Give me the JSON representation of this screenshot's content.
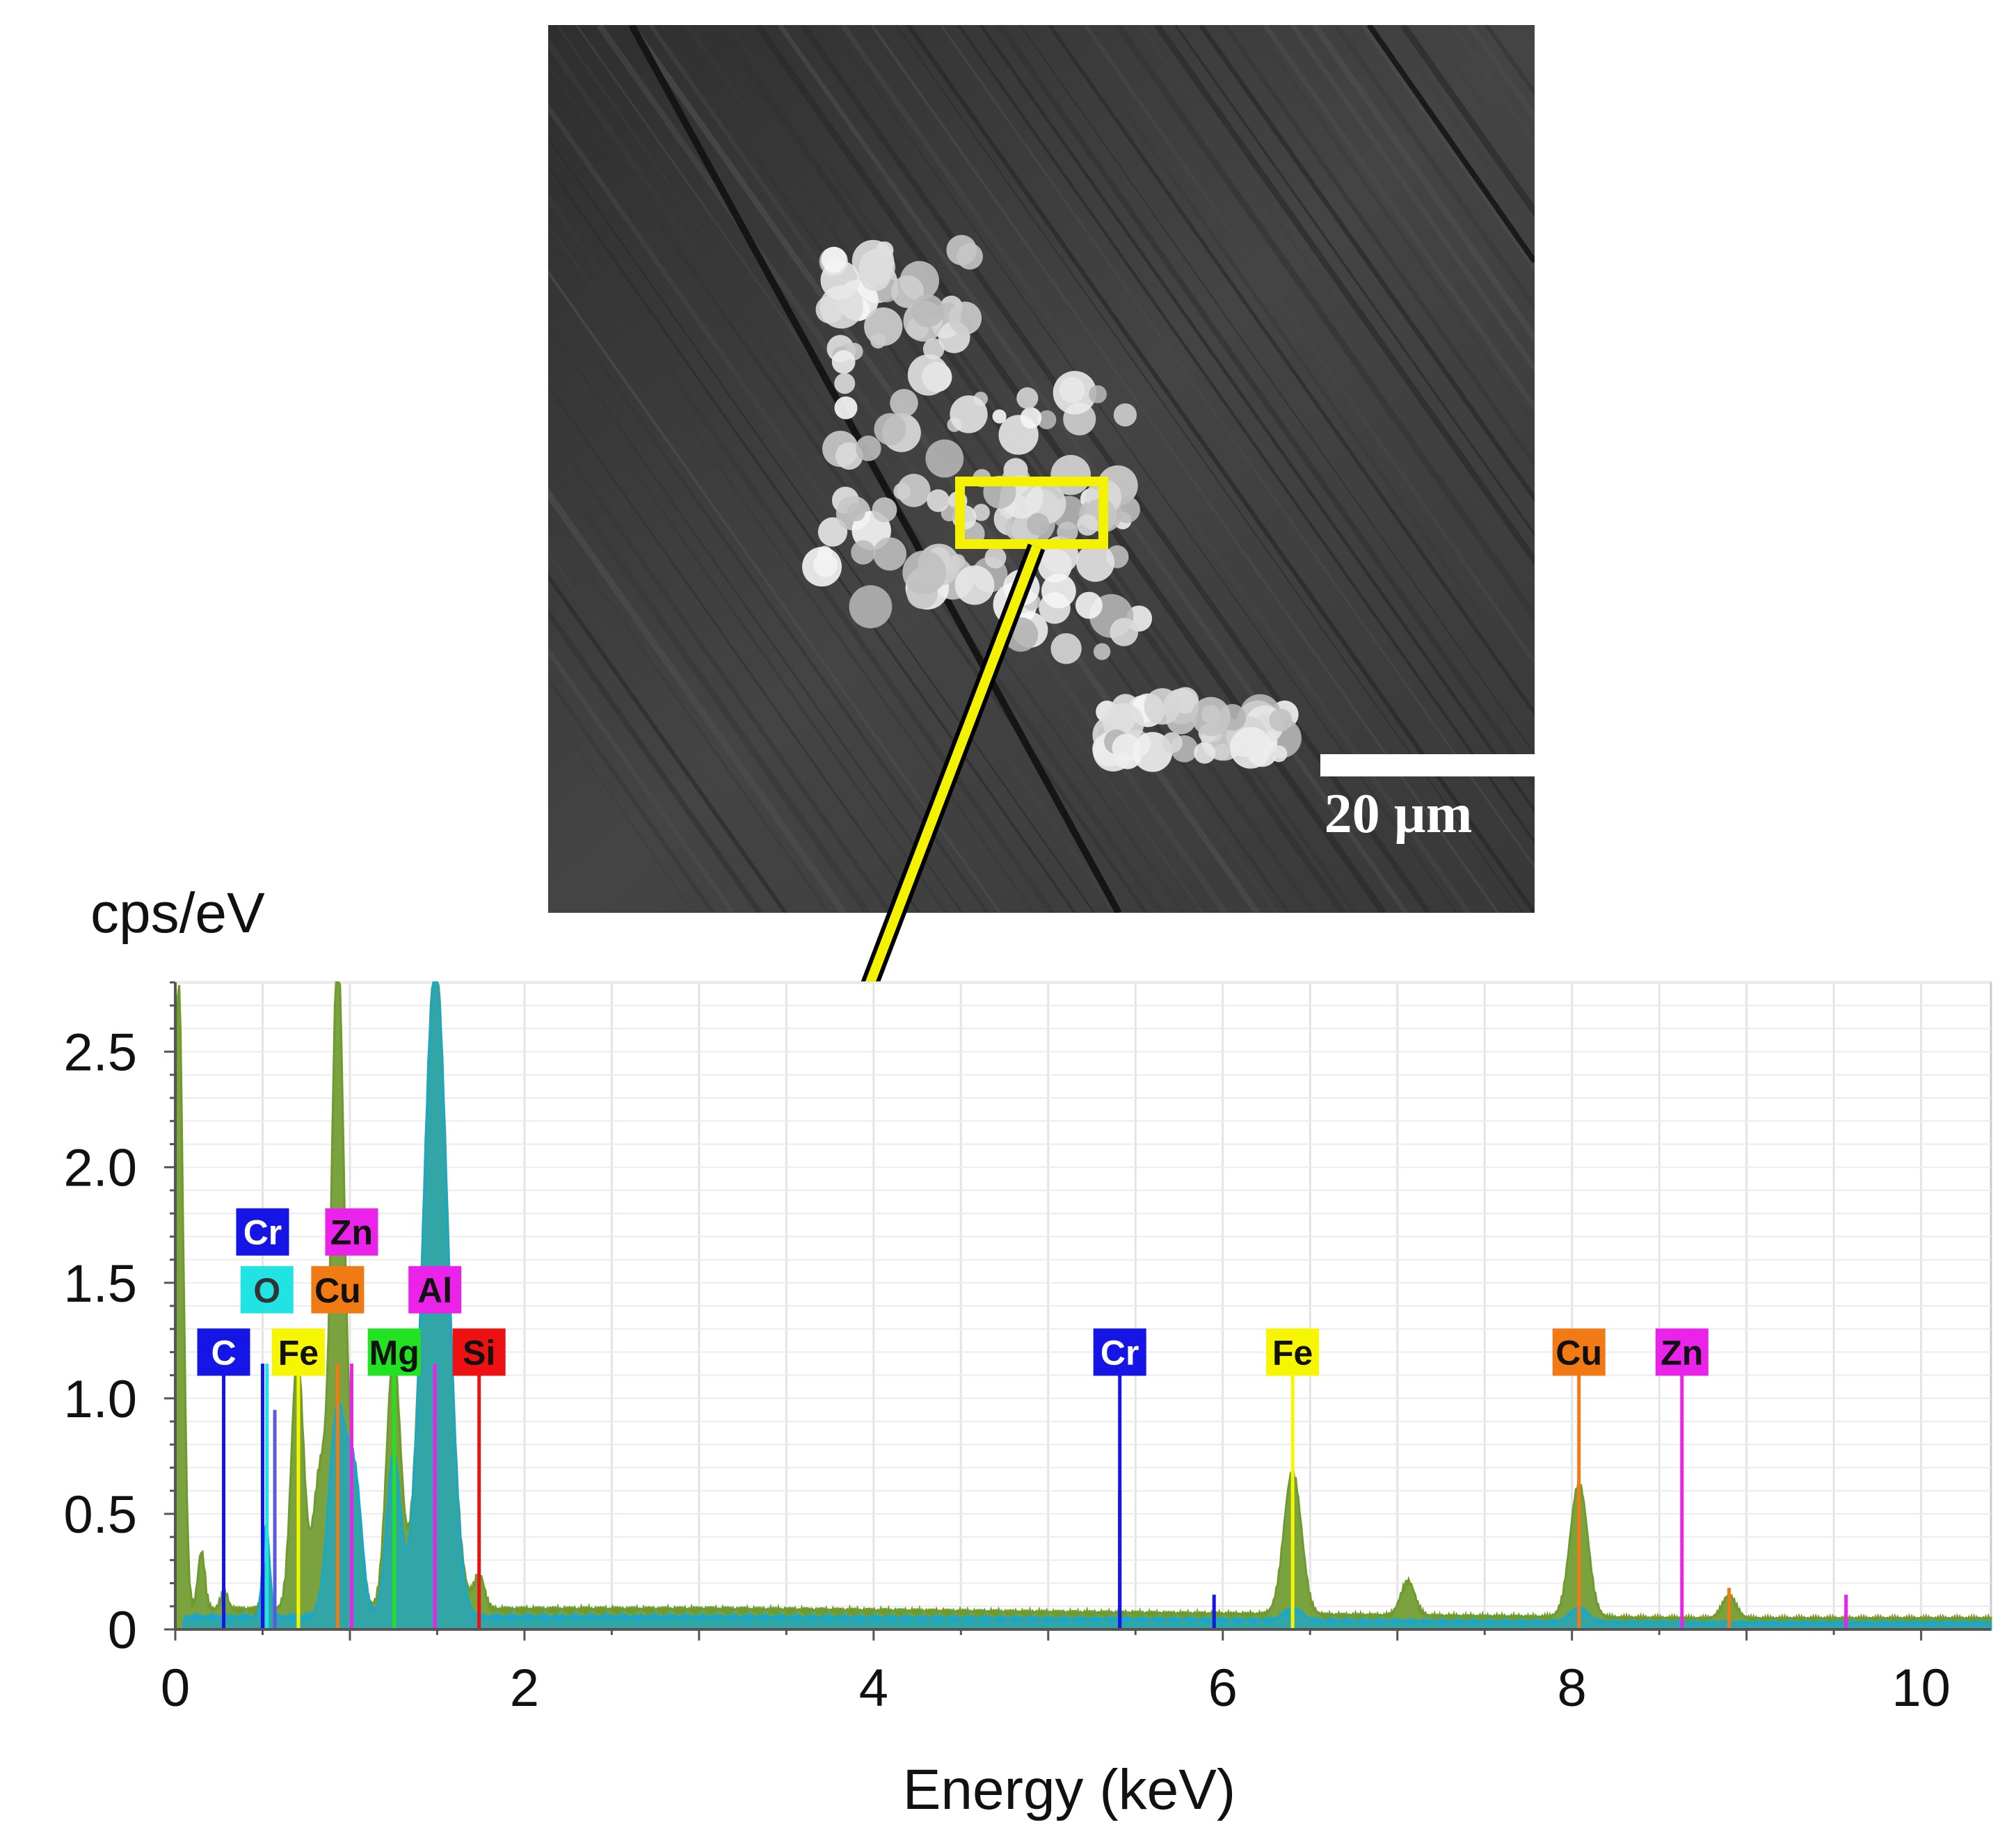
{
  "figure": {
    "micrograph": {
      "scale_bar_label": "20 µm",
      "colors": {
        "background": "#3a3a3a",
        "particles": "#e4e4e4",
        "selection": "#f5f200"
      }
    }
  },
  "chart_data": {
    "type": "line",
    "title": "",
    "xlabel": "Energy (keV)",
    "ylabel": "cps/eV",
    "xlim": [
      0,
      10.4
    ],
    "ylim": [
      0,
      2.8
    ],
    "x_ticks": [
      0,
      2,
      4,
      6,
      8,
      10
    ],
    "x_tick_labels": [
      "0",
      "2",
      "4",
      "6",
      "8",
      "10"
    ],
    "y_ticks": [
      0,
      0.5,
      1.0,
      1.5,
      2.0,
      2.5
    ],
    "y_tick_labels": [
      "0",
      "0.5",
      "1.0",
      "1.5",
      "2.0",
      "2.5"
    ],
    "grid": true,
    "series": [
      {
        "name": "spectrum (green)",
        "color": "#6f9a2e",
        "baseline": 0.08,
        "peaks": [
          {
            "energy": 0.02,
            "height": 2.8,
            "width": 0.025
          },
          {
            "energy": 0.15,
            "height": 0.25,
            "width": 0.02
          },
          {
            "energy": 0.28,
            "height": 0.08,
            "width": 0.02
          },
          {
            "energy": 0.52,
            "height": 0.2,
            "width": 0.02
          },
          {
            "energy": 0.7,
            "height": 1.1,
            "width": 0.035
          },
          {
            "energy": 0.83,
            "height": 0.6,
            "width": 0.04
          },
          {
            "energy": 0.93,
            "height": 2.8,
            "width": 0.035
          },
          {
            "energy": 1.02,
            "height": 0.55,
            "width": 0.04
          },
          {
            "energy": 1.25,
            "height": 1.1,
            "width": 0.04
          },
          {
            "energy": 1.49,
            "height": 2.8,
            "width": 0.07
          },
          {
            "energy": 1.74,
            "height": 0.15,
            "width": 0.03
          },
          {
            "energy": 6.4,
            "height": 0.62,
            "width": 0.05
          },
          {
            "energy": 7.06,
            "height": 0.15,
            "width": 0.04
          },
          {
            "energy": 8.04,
            "height": 0.58,
            "width": 0.05
          },
          {
            "energy": 8.9,
            "height": 0.1,
            "width": 0.04
          }
        ]
      },
      {
        "name": "spectrum (cyan)",
        "color": "#1ba7c9",
        "baseline": 0.05,
        "peaks": [
          {
            "energy": 0.52,
            "height": 0.4,
            "width": 0.02
          },
          {
            "energy": 0.93,
            "height": 0.9,
            "width": 0.05
          },
          {
            "energy": 1.03,
            "height": 0.55,
            "width": 0.04
          },
          {
            "energy": 1.25,
            "height": 0.7,
            "width": 0.04
          },
          {
            "energy": 1.49,
            "height": 2.8,
            "width": 0.07
          },
          {
            "energy": 6.4,
            "height": 0.05,
            "width": 0.05
          },
          {
            "energy": 8.04,
            "height": 0.06,
            "width": 0.05
          }
        ]
      }
    ],
    "element_markers": [
      {
        "label": "C",
        "energy": 0.277,
        "line_height": 1.15,
        "box_color": "#1515e6",
        "text_color": "#ffffff",
        "row": "low"
      },
      {
        "label": "O",
        "energy": 0.525,
        "line_height": 1.15,
        "box_color": "#22e3e3",
        "text_color": "#333333",
        "row": "mid"
      },
      {
        "label": "Cr",
        "energy": 0.5,
        "line_height": 1.15,
        "box_color": "#1515e6",
        "text_color": "#ffffff",
        "row": "high"
      },
      {
        "label": "Fe",
        "energy": 0.705,
        "line_height": 1.15,
        "box_color": "#f6f600",
        "text_color": "#111111",
        "row": "low"
      },
      {
        "label": "Cu",
        "energy": 0.93,
        "line_height": 1.15,
        "box_color": "#f27a14",
        "text_color": "#111111",
        "row": "mid"
      },
      {
        "label": "Zn",
        "energy": 1.01,
        "line_height": 1.15,
        "box_color": "#ea22ea",
        "text_color": "#111111",
        "row": "high"
      },
      {
        "label": "Mg",
        "energy": 1.254,
        "line_height": 1.15,
        "box_color": "#22e322",
        "text_color": "#111111",
        "row": "low"
      },
      {
        "label": "Al",
        "energy": 1.487,
        "line_height": 1.15,
        "box_color": "#ea22ea",
        "text_color": "#111111",
        "row": "mid"
      },
      {
        "label": "Si",
        "energy": 1.74,
        "line_height": 1.15,
        "box_color": "#ee1111",
        "text_color": "#111111",
        "row": "low"
      },
      {
        "label": "Cr",
        "energy": 5.41,
        "line_height": 1.15,
        "box_color": "#1515e6",
        "text_color": "#ffffff",
        "row": "low"
      },
      {
        "label": "Fe",
        "energy": 6.4,
        "line_height": 1.15,
        "box_color": "#f6f600",
        "text_color": "#111111",
        "row": "low"
      },
      {
        "label": "Cu",
        "energy": 8.04,
        "line_height": 1.15,
        "box_color": "#f27a14",
        "text_color": "#111111",
        "row": "low"
      },
      {
        "label": "Zn",
        "energy": 8.63,
        "line_height": 1.15,
        "box_color": "#ea22ea",
        "text_color": "#111111",
        "row": "low"
      }
    ],
    "minor_lines": [
      {
        "energy": 0.57,
        "height": 0.95,
        "color": "#5a5ae0"
      },
      {
        "energy": 5.41,
        "height": 0.6,
        "color": "#1515e6"
      },
      {
        "energy": 5.95,
        "height": 0.15,
        "color": "#1515e6"
      },
      {
        "energy": 8.9,
        "height": 0.18,
        "color": "#f27a14"
      },
      {
        "energy": 9.57,
        "height": 0.15,
        "color": "#ea22ea"
      }
    ]
  }
}
